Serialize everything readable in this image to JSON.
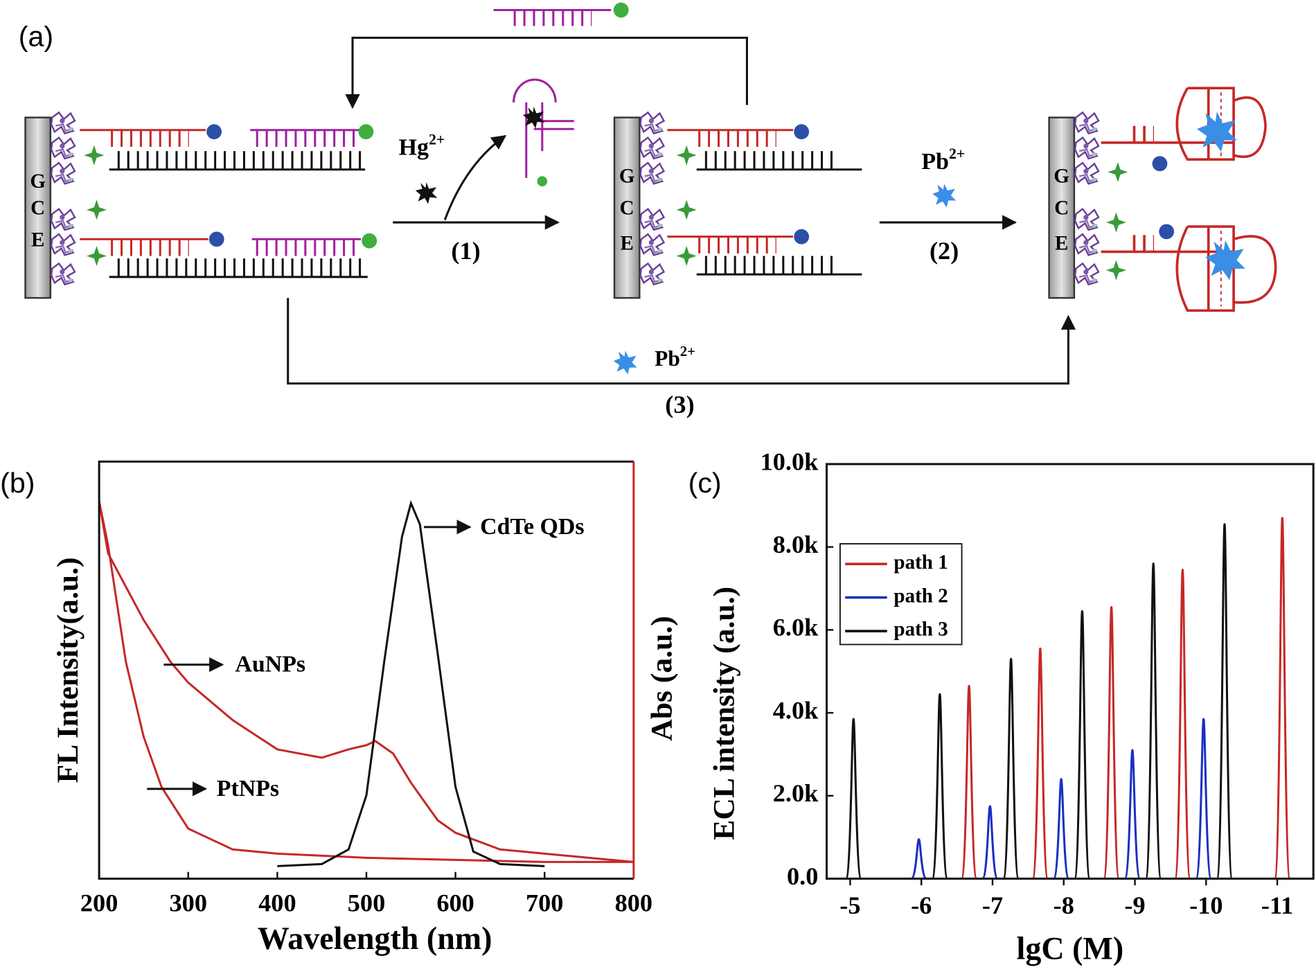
{
  "panel_a": {
    "label": "(a)",
    "electrodes": [
      {
        "letters": [
          "G",
          "C",
          "E"
        ]
      },
      {
        "letters": [
          "G",
          "C",
          "E"
        ]
      },
      {
        "letters": [
          "G",
          "C",
          "E"
        ]
      }
    ],
    "steps": [
      {
        "ion": {
          "base": "Hg",
          "sup": "2+"
        },
        "label": "(1)"
      },
      {
        "ion": {
          "base": "Pb",
          "sup": "2+"
        },
        "label": "(2)"
      },
      {
        "ion": {
          "base": "Pb",
          "sup": "2+"
        },
        "label": "(3)"
      }
    ]
  },
  "chart_data": [
    {
      "type": "line",
      "label": "(b)",
      "xlabel": "Wavelength (nm)",
      "ylabel": "FL Intensity(a.u.)",
      "y2label": "Abs (a.u.)",
      "xlim": [
        200,
        800
      ],
      "xticks": [
        200,
        300,
        400,
        500,
        600,
        700,
        800
      ],
      "ylim": [
        0,
        1
      ],
      "series": [
        {
          "name": "AuNPs",
          "color": "#c62828",
          "x": [
            200,
            210,
            230,
            250,
            280,
            300,
            350,
            400,
            450,
            480,
            500,
            510,
            530,
            550,
            580,
            600,
            650,
            700,
            750,
            800
          ],
          "values": [
            0.905,
            0.78,
            0.7,
            0.62,
            0.52,
            0.47,
            0.38,
            0.31,
            0.29,
            0.31,
            0.32,
            0.33,
            0.3,
            0.23,
            0.14,
            0.11,
            0.07,
            0.06,
            0.05,
            0.04
          ]
        },
        {
          "name": "PtNPs",
          "color": "#c62828",
          "x": [
            200,
            210,
            230,
            250,
            270,
            300,
            350,
            400,
            500,
            600,
            700,
            800
          ],
          "values": [
            0.905,
            0.8,
            0.52,
            0.34,
            0.22,
            0.12,
            0.07,
            0.06,
            0.05,
            0.045,
            0.04,
            0.04
          ]
        },
        {
          "name": "CdTe QDs",
          "color": "#111111",
          "x": [
            400,
            450,
            480,
            500,
            520,
            540,
            550,
            560,
            580,
            600,
            620,
            650,
            700
          ],
          "values": [
            0.03,
            0.035,
            0.07,
            0.2,
            0.52,
            0.82,
            0.9,
            0.85,
            0.54,
            0.22,
            0.065,
            0.035,
            0.03
          ]
        }
      ]
    },
    {
      "type": "spike",
      "label": "(c)",
      "xlabel": "lgC (M)",
      "ylabel": "ECL intensity (a.u.)",
      "categories": [
        "-5",
        "-6",
        "-7",
        "-8",
        "-9",
        "-10",
        "-11"
      ],
      "ylim": [
        0,
        10000
      ],
      "yticks": [
        {
          "value": 0,
          "label": "0.0"
        },
        {
          "value": 2000,
          "label": "2.0k"
        },
        {
          "value": 4000,
          "label": "4.0k"
        },
        {
          "value": 6000,
          "label": "6.0k"
        },
        {
          "value": 8000,
          "label": "8.0k"
        },
        {
          "value": 10000,
          "label": "10.0k"
        }
      ],
      "legend": "upper left",
      "series": [
        {
          "name": "path 1",
          "color": "#c62828",
          "values": [
            null,
            null,
            4650,
            5550,
            6550,
            7450,
            8700
          ]
        },
        {
          "name": "path 2",
          "color": "#1a2fc2",
          "values": [
            null,
            950,
            1750,
            2400,
            3100,
            3850,
            null
          ]
        },
        {
          "name": "path 3",
          "color": "#111111",
          "values": [
            3850,
            4450,
            5300,
            6450,
            7600,
            8550,
            null
          ]
        }
      ]
    }
  ]
}
